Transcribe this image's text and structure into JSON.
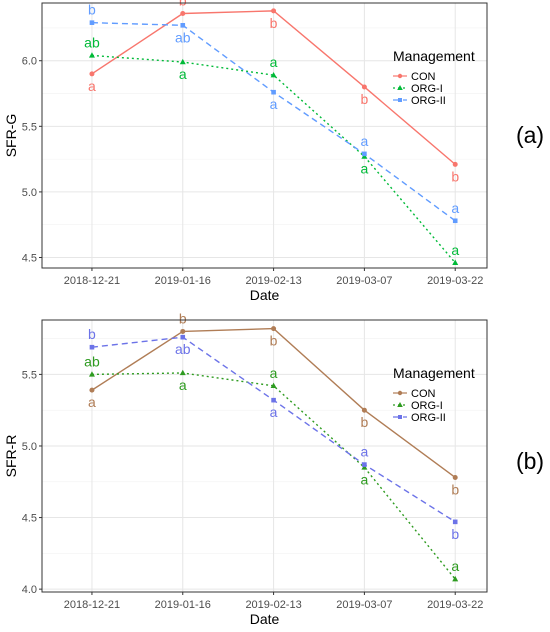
{
  "chart_data": [
    {
      "panel_label": "(a)",
      "type": "line",
      "xlabel": "Date",
      "ylabel": "SFR-G",
      "ylim": [
        4.42,
        6.44
      ],
      "yticks": [
        "4.5",
        "5.0",
        "5.5",
        "6.0"
      ],
      "categories": [
        "2018-12-21",
        "2019-01-16",
        "2019-02-13",
        "2019-03-07",
        "2019-03-22"
      ],
      "legend_title": "Management",
      "legend_position": "top-right",
      "grid": true,
      "series": [
        {
          "name": "CON",
          "color": "#F8766D",
          "line_style": "solid",
          "marker": "circle",
          "values": [
            5.9,
            6.36,
            6.38,
            5.8,
            5.21
          ],
          "letters": [
            "a",
            "b",
            "b",
            "b",
            "b"
          ],
          "letter_pos": [
            "below",
            "above",
            "below",
            "below",
            "below"
          ]
        },
        {
          "name": "ORG-I",
          "color": "#00BA38",
          "line_style": "dotted",
          "marker": "triangle",
          "values": [
            6.04,
            5.99,
            5.89,
            5.27,
            4.46
          ],
          "letters": [
            "ab",
            "a",
            "a",
            "a",
            "a"
          ],
          "letter_pos": [
            "above",
            "below",
            "above",
            "below",
            "above"
          ]
        },
        {
          "name": "ORG-II",
          "color": "#619CFF",
          "line_style": "dashed",
          "marker": "square",
          "values": [
            6.29,
            6.27,
            5.76,
            5.29,
            4.78
          ],
          "letters": [
            "b",
            "ab",
            "a",
            "a",
            "a"
          ],
          "letter_pos": [
            "above",
            "below",
            "below",
            "above",
            "above"
          ]
        }
      ]
    },
    {
      "panel_label": "(b)",
      "type": "line",
      "xlabel": "Date",
      "ylabel": "SFR-R",
      "ylim": [
        3.98,
        5.88
      ],
      "yticks": [
        "4.0",
        "4.5",
        "5.0",
        "5.5"
      ],
      "categories": [
        "2018-12-21",
        "2019-01-16",
        "2019-02-13",
        "2019-03-07",
        "2019-03-22"
      ],
      "legend_title": "Management",
      "legend_position": "top-right",
      "grid": true,
      "series": [
        {
          "name": "CON",
          "color": "#B07D56",
          "line_style": "solid",
          "marker": "circle",
          "values": [
            5.39,
            5.8,
            5.82,
            5.25,
            4.78
          ],
          "letters": [
            "a",
            "b",
            "b",
            "b",
            "b"
          ],
          "letter_pos": [
            "below",
            "above",
            "below",
            "below",
            "below"
          ]
        },
        {
          "name": "ORG-I",
          "color": "#2E9B20",
          "line_style": "dotted",
          "marker": "triangle",
          "values": [
            5.5,
            5.51,
            5.42,
            4.85,
            4.07
          ],
          "letters": [
            "ab",
            "a",
            "a",
            "a",
            "a"
          ],
          "letter_pos": [
            "above",
            "below",
            "above",
            "below",
            "above"
          ]
        },
        {
          "name": "ORG-II",
          "color": "#6C73E8",
          "line_style": "dashed",
          "marker": "square",
          "values": [
            5.69,
            5.76,
            5.32,
            4.87,
            4.47
          ],
          "letters": [
            "b",
            "ab",
            "a",
            "a",
            "b"
          ],
          "letter_pos": [
            "above",
            "below",
            "below",
            "above",
            "below"
          ]
        }
      ]
    }
  ]
}
